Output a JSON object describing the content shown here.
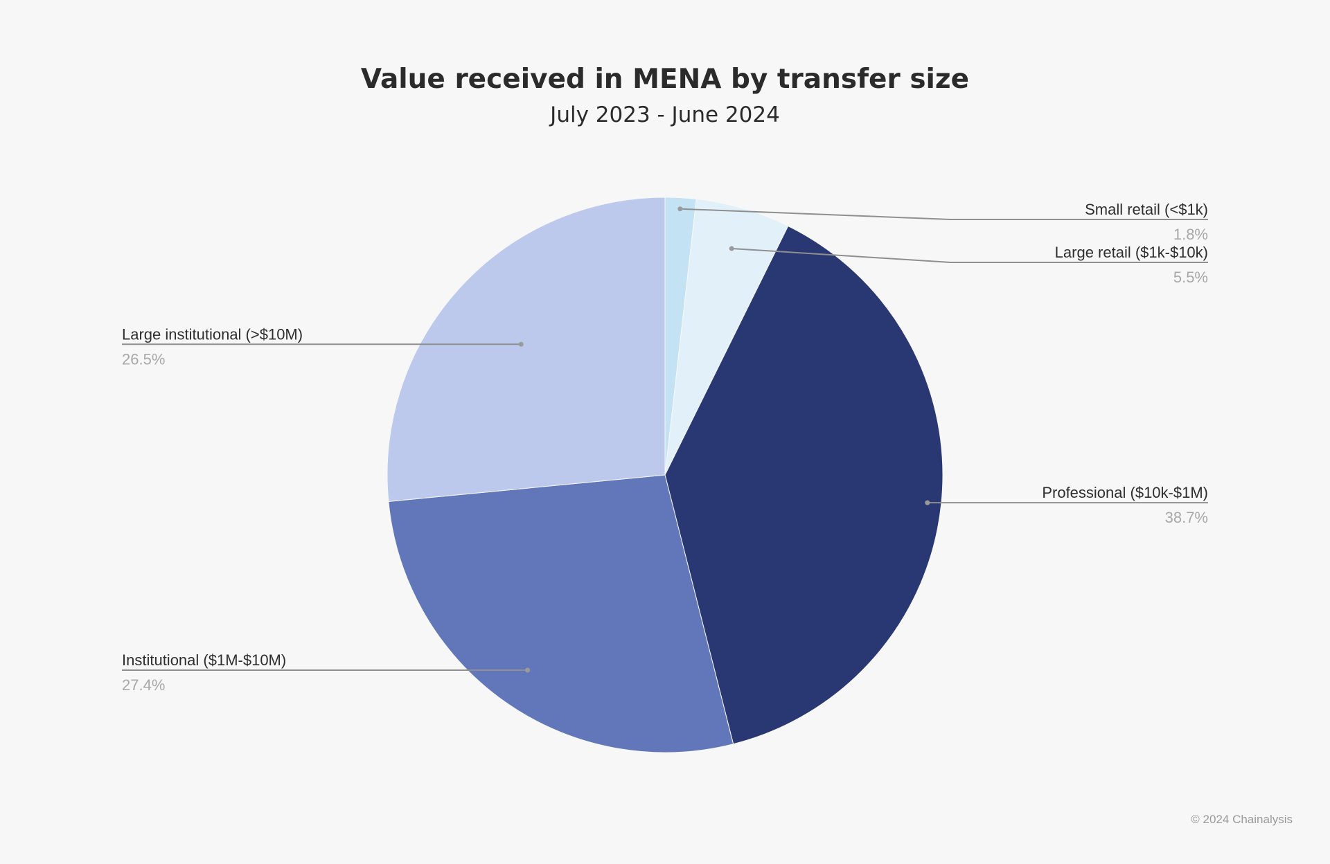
{
  "chart_data": {
    "type": "pie",
    "title": "Value received in MENA by transfer size",
    "subtitle": "July 2023 - June 2024",
    "slices": [
      {
        "label": "Small retail (<$1k)",
        "value": 1.8,
        "display": "1.8%",
        "color": "#c3e3f5"
      },
      {
        "label": "Large retail ($1k-$10k)",
        "value": 5.5,
        "display": "5.5%",
        "color": "#e2f1f9"
      },
      {
        "label": "Professional ($10k-$1M)",
        "value": 38.7,
        "display": "38.7%",
        "color": "#293873"
      },
      {
        "label": "Institutional ($1M-$10M)",
        "value": 27.4,
        "display": "27.4%",
        "color": "#6277ba"
      },
      {
        "label": "Large institutional (>$10M)",
        "value": 26.5,
        "display": "26.5%",
        "color": "#bcc9ec"
      }
    ],
    "start_angle": "12 o'clock",
    "direction": "clockwise",
    "legend": "none"
  },
  "footer": {
    "copyright": "© 2024 Chainalysis"
  }
}
